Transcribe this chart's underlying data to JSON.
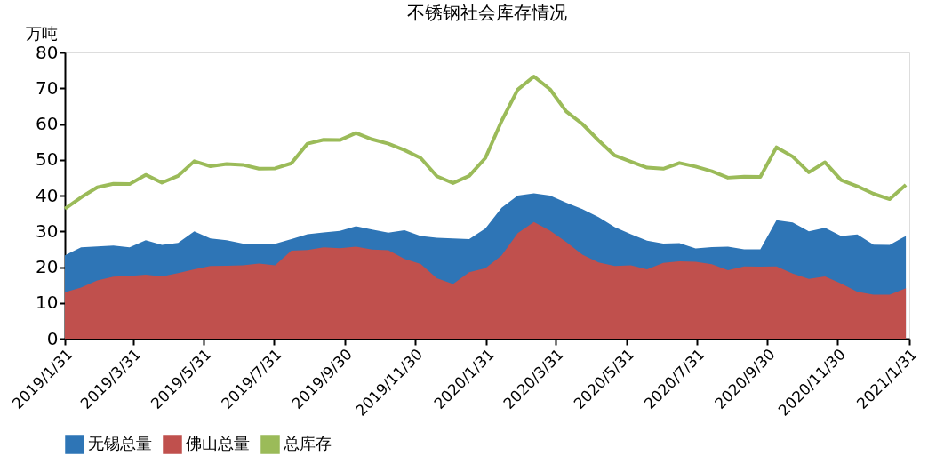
{
  "chart_data": {
    "type": "area",
    "title": "不锈钢社会库存情况",
    "ylabel": "万吨",
    "x": [
      "2019-01-31",
      "2019-02-14",
      "2019-02-28",
      "2019-03-14",
      "2019-03-28",
      "2019-04-11",
      "2019-04-25",
      "2019-05-09",
      "2019-05-23",
      "2019-06-06",
      "2019-06-20",
      "2019-07-04",
      "2019-07-18",
      "2019-08-01",
      "2019-08-15",
      "2019-08-29",
      "2019-09-12",
      "2019-09-26",
      "2019-10-10",
      "2019-10-24",
      "2019-11-07",
      "2019-11-21",
      "2019-12-05",
      "2019-12-19",
      "2020-01-02",
      "2020-01-16",
      "2020-01-30",
      "2020-02-13",
      "2020-02-27",
      "2020-03-12",
      "2020-03-26",
      "2020-04-09",
      "2020-04-23",
      "2020-05-07",
      "2020-05-21",
      "2020-06-04",
      "2020-06-18",
      "2020-07-02",
      "2020-07-16",
      "2020-07-30",
      "2020-08-13",
      "2020-08-27",
      "2020-09-10",
      "2020-09-24",
      "2020-10-08",
      "2020-10-22",
      "2020-11-05",
      "2020-11-19",
      "2020-12-03",
      "2020-12-17",
      "2020-12-31",
      "2021-01-14",
      "2021-01-28"
    ],
    "series": [
      {
        "name": "无锡总量",
        "color": "#2e75b6",
        "values": [
          23.3,
          25.5,
          25.8,
          26,
          25.5,
          27.5,
          26.2,
          26.8,
          30,
          28,
          27.5,
          26.6,
          26.6,
          26.5,
          27.8,
          29.2,
          29.7,
          30.1,
          31.4,
          30.5,
          29.6,
          30.3,
          28.7,
          28.2,
          28,
          27.8,
          30.8,
          36.6,
          40,
          40.6,
          40,
          38,
          36.2,
          34,
          31.2,
          29.2,
          27.4,
          26.6,
          26.7,
          25.2,
          25.6,
          25.7,
          25,
          25,
          33.1,
          32.5,
          30,
          31,
          28.7,
          29.1,
          26.3,
          26.2,
          28.7
        ]
      },
      {
        "name": "佛山总量",
        "color": "#c0504d",
        "values": [
          13,
          14.3,
          16.3,
          17.3,
          17.5,
          17.9,
          17.4,
          18.3,
          19.4,
          20.3,
          20.4,
          20.5,
          21,
          20.5,
          24.6,
          24.8,
          25.5,
          25.3,
          25.7,
          24.9,
          24.7,
          22.3,
          20.9,
          16.9,
          15.3,
          18.6,
          19.7,
          23.2,
          29.5,
          32.6,
          30.2,
          27,
          23.5,
          21.3,
          20.3,
          20.5,
          19.4,
          21.2,
          21.6,
          21.5,
          20.8,
          19.1,
          20.2,
          20.1,
          20.2,
          18.2,
          16.7,
          17.4,
          15.4,
          13.1,
          12.3,
          12.3,
          14.1
        ]
      },
      {
        "name": "总库存",
        "type": "line",
        "color": "#9bbb59",
        "values": [
          36.3,
          39.5,
          42.3,
          43.3,
          43.2,
          45.8,
          43.6,
          45.5,
          49.6,
          48.2,
          48.8,
          48.6,
          47.5,
          47.6,
          49,
          54.5,
          55.6,
          55.5,
          57.5,
          55.7,
          54.5,
          52.7,
          50.5,
          45.4,
          43.5,
          45.5,
          50.5,
          60.8,
          69.6,
          73.3,
          69.7,
          63.5,
          60,
          55.4,
          51.2,
          49.5,
          47.8,
          47.5,
          49.1,
          48.1,
          46.8,
          45,
          45.3,
          45.2,
          53.5,
          50.9,
          46.5,
          49.3,
          44.3,
          42.6,
          40.5,
          39,
          43
        ]
      }
    ],
    "xlim": [
      "2019-01-31",
      "2021-01-31"
    ],
    "xticks": [
      {
        "value": "2019-01-31",
        "label": "2019/1/31"
      },
      {
        "value": "2019-03-31",
        "label": "2019/3/31"
      },
      {
        "value": "2019-05-31",
        "label": "2019/5/31"
      },
      {
        "value": "2019-07-31",
        "label": "2019/7/31"
      },
      {
        "value": "2019-09-30",
        "label": "2019/9/30"
      },
      {
        "value": "2019-11-30",
        "label": "2019/11/30"
      },
      {
        "value": "2020-01-31",
        "label": "2020/1/31"
      },
      {
        "value": "2020-03-31",
        "label": "2020/3/31"
      },
      {
        "value": "2020-05-31",
        "label": "2020/5/31"
      },
      {
        "value": "2020-07-31",
        "label": "2020/7/31"
      },
      {
        "value": "2020-09-30",
        "label": "2020/9/30"
      },
      {
        "value": "2020-11-30",
        "label": "2020/11/30"
      },
      {
        "value": "2021-01-31",
        "label": "2021/1/31"
      }
    ],
    "ylim": [
      0,
      80
    ],
    "yticks": [
      0,
      10,
      20,
      30,
      40,
      50,
      60,
      70,
      80
    ],
    "grid": false,
    "legend": "bottom"
  }
}
